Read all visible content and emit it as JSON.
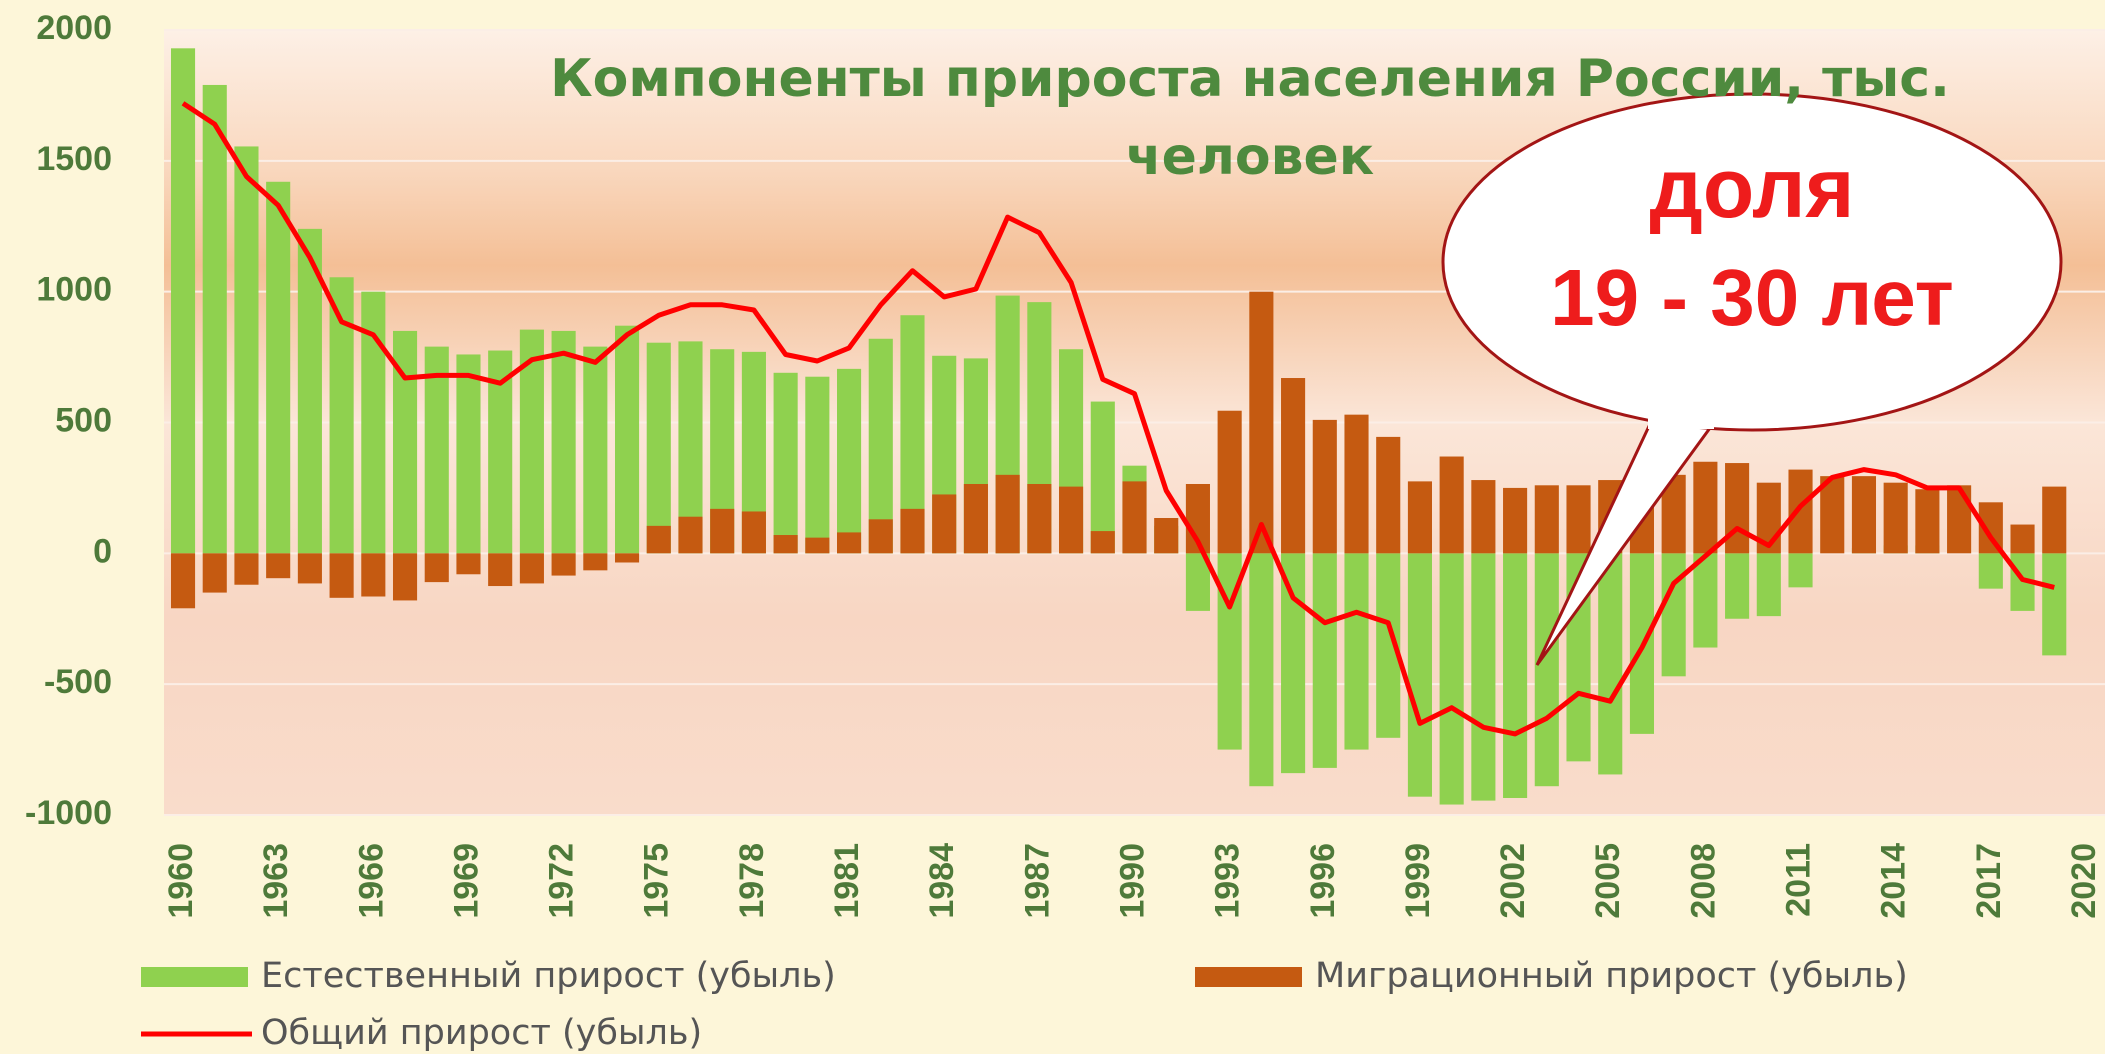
{
  "chart_data": {
    "type": "bar_line",
    "title": "Компоненты прироста населения России, тыс. человек",
    "annotations": [
      "доля",
      "19 - 30 лет"
    ],
    "x": [
      1960,
      1961,
      1962,
      1963,
      1964,
      1965,
      1966,
      1967,
      1968,
      1969,
      1970,
      1971,
      1972,
      1973,
      1974,
      1975,
      1976,
      1977,
      1978,
      1979,
      1980,
      1981,
      1982,
      1983,
      1984,
      1985,
      1986,
      1987,
      1988,
      1989,
      1990,
      1991,
      1992,
      1993,
      1994,
      1995,
      1996,
      1997,
      1998,
      1999,
      2000,
      2001,
      2002,
      2003,
      2004,
      2005,
      2006,
      2007,
      2008,
      2009,
      2010,
      2011,
      2012,
      2013,
      2014,
      2015,
      2016,
      2017,
      2018,
      2019
    ],
    "series": [
      {
        "name": "Естественный прирост (убыль)",
        "type": "bar",
        "color": "#8fd14f",
        "values": [
          1930,
          1790,
          1555,
          1420,
          1240,
          1055,
          1000,
          850,
          790,
          760,
          775,
          855,
          850,
          790,
          870,
          805,
          810,
          780,
          770,
          690,
          675,
          705,
          820,
          910,
          755,
          745,
          985,
          960,
          780,
          580,
          335,
          105,
          -220,
          -750,
          -890,
          -840,
          -820,
          -750,
          -705,
          -930,
          -960,
          -945,
          -935,
          -890,
          -795,
          -845,
          -690,
          -470,
          -360,
          -250,
          -240,
          -130,
          0,
          20,
          30,
          30,
          0,
          -135,
          -220,
          -390
        ]
      },
      {
        "name": "Миграционный прирост (убыль)",
        "type": "bar",
        "color": "#c55a11",
        "values": [
          -210,
          -150,
          -120,
          -95,
          -115,
          -170,
          -165,
          -180,
          -110,
          -80,
          -125,
          -115,
          -85,
          -65,
          -35,
          105,
          140,
          170,
          160,
          70,
          60,
          80,
          130,
          170,
          225,
          265,
          300,
          265,
          255,
          85,
          275,
          135,
          265,
          545,
          1000,
          670,
          510,
          530,
          445,
          275,
          370,
          280,
          250,
          260,
          260,
          280,
          180,
          300,
          350,
          345,
          270,
          320,
          295,
          295,
          270,
          245,
          260,
          195,
          110,
          255
        ]
      },
      {
        "name": "Общий прирост (убыль)",
        "type": "line",
        "color": "#ff0000",
        "values": [
          1720,
          1640,
          1440,
          1330,
          1130,
          885,
          835,
          670,
          680,
          680,
          650,
          740,
          765,
          730,
          835,
          910,
          950,
          950,
          930,
          760,
          735,
          785,
          950,
          1080,
          980,
          1010,
          1285,
          1225,
          1035,
          665,
          610,
          240,
          45,
          -205,
          110,
          -170,
          -265,
          -225,
          -265,
          -650,
          -590,
          -665,
          -690,
          -630,
          -535,
          -565,
          -360,
          -115,
          -10,
          95,
          30,
          180,
          290,
          320,
          300,
          250,
          250,
          60,
          -100,
          -130
        ]
      }
    ],
    "xlim": [
      1959.4,
      2020.6
    ],
    "xticks": [
      1960,
      1963,
      1966,
      1969,
      1972,
      1975,
      1978,
      1981,
      1984,
      1987,
      1990,
      1993,
      1996,
      1999,
      2002,
      2005,
      2008,
      2011,
      2014,
      2017,
      2020
    ],
    "ylim": [
      -1000,
      2000
    ],
    "yticks": [
      -1000,
      -500,
      0,
      500,
      1000,
      1500,
      2000
    ],
    "grid": true,
    "legend": "bottom"
  }
}
